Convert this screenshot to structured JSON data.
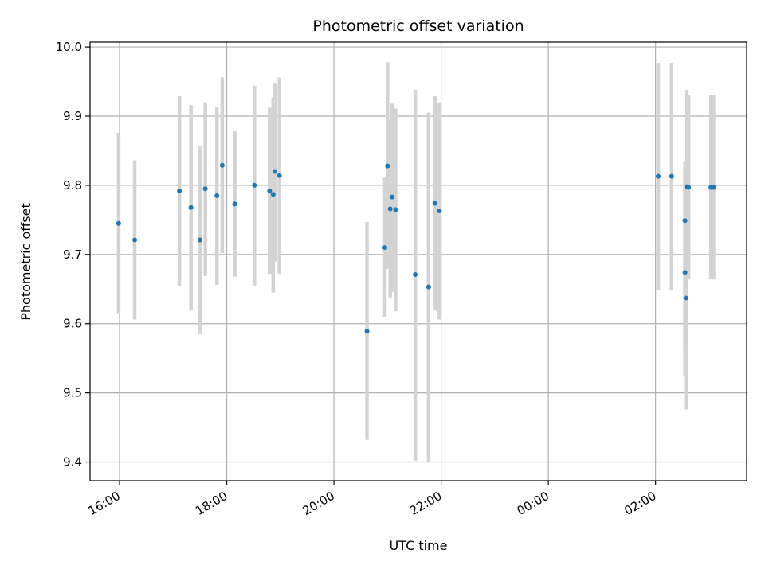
{
  "chart_data": {
    "type": "scatter",
    "title": "Photometric offset variation",
    "xlabel": "UTC time",
    "ylabel": "Photometric offset",
    "x_ticks": [
      "16:00",
      "18:00",
      "20:00",
      "22:00",
      "00:00",
      "02:00"
    ],
    "x_tick_hours": [
      16,
      18,
      20,
      22,
      24,
      26
    ],
    "xlim_hours": [
      15.45,
      27.7
    ],
    "ylim": [
      9.373,
      10.007
    ],
    "y_ticks": [
      9.4,
      9.5,
      9.6,
      9.7,
      9.8,
      9.9,
      10.0
    ],
    "y_tick_labels": [
      "9.4",
      "9.5",
      "9.6",
      "9.7",
      "9.8",
      "9.9",
      "10.0"
    ],
    "grid": true,
    "colors": {
      "points": "#1f77b4",
      "errorbars": "#d3d3d3",
      "grid": "#b0b0b0"
    },
    "points": [
      {
        "x": "15:59",
        "y": 9.745,
        "lo": 9.615,
        "hi": 9.876
      },
      {
        "x": "16:17",
        "y": 9.721,
        "lo": 9.606,
        "hi": 9.836
      },
      {
        "x": "17:07",
        "y": 9.792,
        "lo": 9.654,
        "hi": 9.929
      },
      {
        "x": "17:20",
        "y": 9.768,
        "lo": 9.619,
        "hi": 9.916
      },
      {
        "x": "17:30",
        "y": 9.721,
        "lo": 9.585,
        "hi": 9.856
      },
      {
        "x": "17:36",
        "y": 9.795,
        "lo": 9.669,
        "hi": 9.92
      },
      {
        "x": "17:49",
        "y": 9.785,
        "lo": 9.656,
        "hi": 9.913
      },
      {
        "x": "17:55",
        "y": 9.829,
        "lo": 9.702,
        "hi": 9.956
      },
      {
        "x": "18:09",
        "y": 9.773,
        "lo": 9.668,
        "hi": 9.878
      },
      {
        "x": "18:31",
        "y": 9.8,
        "lo": 9.655,
        "hi": 9.944
      },
      {
        "x": "18:48",
        "y": 9.792,
        "lo": 9.672,
        "hi": 9.912
      },
      {
        "x": "18:52",
        "y": 9.787,
        "lo": 9.645,
        "hi": 9.927
      },
      {
        "x": "18:54",
        "y": 9.82,
        "lo": 9.69,
        "hi": 9.948
      },
      {
        "x": "18:59",
        "y": 9.814,
        "lo": 9.672,
        "hi": 9.956
      },
      {
        "x": "20:37",
        "y": 9.589,
        "lo": 9.432,
        "hi": 9.747
      },
      {
        "x": "20:57",
        "y": 9.71,
        "lo": 9.61,
        "hi": 9.811
      },
      {
        "x": "21:00",
        "y": 9.828,
        "lo": 9.679,
        "hi": 9.978
      },
      {
        "x": "21:03",
        "y": 9.766,
        "lo": 9.638,
        "hi": 9.896
      },
      {
        "x": "21:05",
        "y": 9.783,
        "lo": 9.646,
        "hi": 9.918
      },
      {
        "x": "21:09",
        "y": 9.765,
        "lo": 9.618,
        "hi": 9.911
      },
      {
        "x": "21:31",
        "y": 9.671,
        "lo": 9.402,
        "hi": 9.938
      },
      {
        "x": "21:46",
        "y": 9.653,
        "lo": 9.4,
        "hi": 9.905
      },
      {
        "x": "21:53",
        "y": 9.774,
        "lo": 9.619,
        "hi": 9.929
      },
      {
        "x": "21:58",
        "y": 9.763,
        "lo": 9.606,
        "hi": 9.92
      },
      {
        "x": "02:03",
        "y": 9.813,
        "lo": 9.649,
        "hi": 9.977
      },
      {
        "x": "02:18",
        "y": 9.813,
        "lo": 9.649,
        "hi": 9.977
      },
      {
        "x": "02:33",
        "y": 9.749,
        "lo": 9.562,
        "hi": 9.835
      },
      {
        "x": "02:33",
        "y": 9.674,
        "lo": 9.525,
        "hi": 9.823
      },
      {
        "x": "02:34",
        "y": 9.637,
        "lo": 9.476,
        "hi": 9.796
      },
      {
        "x": "02:35",
        "y": 9.798,
        "lo": 9.658,
        "hi": 9.938
      },
      {
        "x": "02:37",
        "y": 9.797,
        "lo": 9.664,
        "hi": 9.931
      },
      {
        "x": "03:02",
        "y": 9.797,
        "lo": 9.664,
        "hi": 9.931
      },
      {
        "x": "03:05",
        "y": 9.797,
        "lo": 9.664,
        "hi": 9.931
      }
    ]
  }
}
